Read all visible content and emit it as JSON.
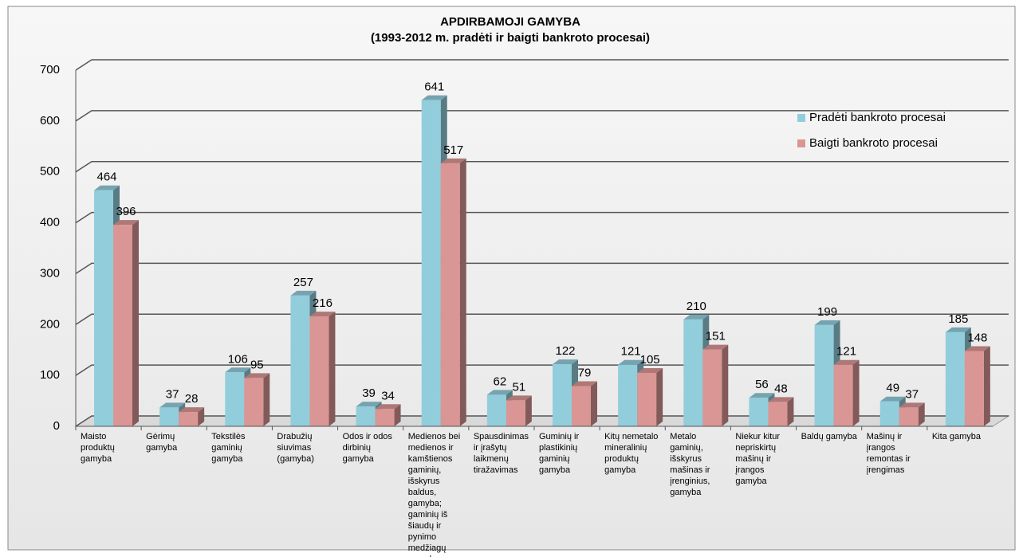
{
  "chart_data": {
    "type": "bar3d",
    "title": "APDIRBAMOJI GAMYBA",
    "subtitle": "(1993-2012 m. pradėti ir baigti bankroto procesai)",
    "categories": [
      "Maisto produktų gamyba",
      "Gėrimų gamyba",
      "Tekstilės gaminių gamyba",
      "Drabužių siuvimas (gamyba)",
      "Odos ir odos dirbinių gamyba",
      "Medienos bei medienos ir kamštienos gaminių, išskyrus baldus, gamyba; gaminių iš šiaudų ir pynimo medžiagų gamyba",
      "Spausdinimas ir įrašytų laikmenų tiražavimas",
      "Guminių ir plastikinių gaminių gamyba",
      "Kitų nemetalo mineralinių produktų gamyba",
      "Metalo gaminių, išskyrus mašinas ir įrenginius, gamyba",
      "Niekur kitur nepriskirtų mašinų ir įrangos gamyba",
      "Baldų gamyba",
      "Mašinų ir įrangos remontas ir įrengimas",
      "Kita gamyba"
    ],
    "series": [
      {
        "name": "Pradėti bankroto procesai",
        "color": "#92cddc",
        "values": [
          464,
          37,
          106,
          257,
          39,
          641,
          62,
          122,
          121,
          210,
          56,
          199,
          49,
          185
        ]
      },
      {
        "name": "Baigti bankroto procesai",
        "color": "#d99694",
        "values": [
          396,
          28,
          95,
          216,
          34,
          517,
          51,
          79,
          105,
          151,
          48,
          121,
          37,
          148
        ]
      }
    ],
    "ylim": [
      0,
      700
    ],
    "yticks": [
      0,
      100,
      200,
      300,
      400,
      500,
      600,
      700
    ],
    "grid": true,
    "legend": "top-right"
  }
}
